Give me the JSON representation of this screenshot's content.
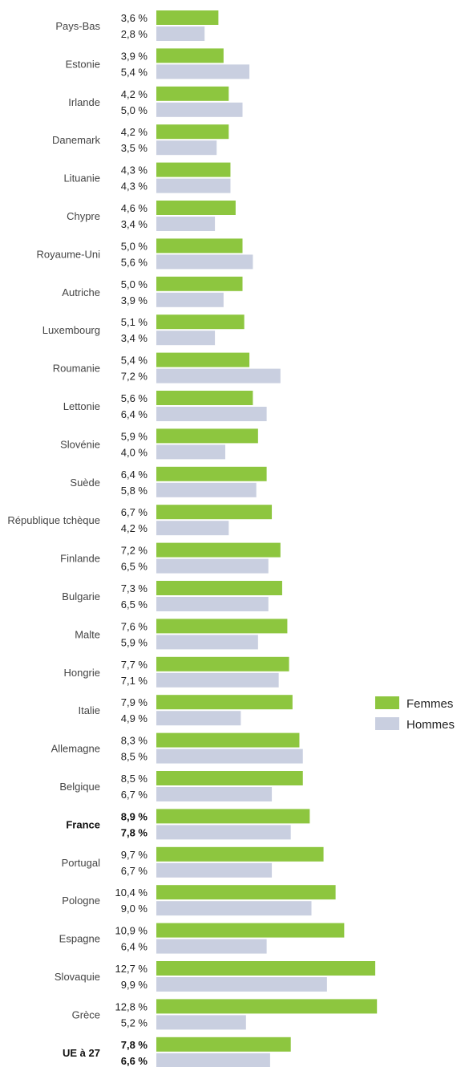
{
  "chart_data": {
    "type": "bar",
    "orientation": "horizontal",
    "value_suffix": " %",
    "colors": {
      "Femmes": "#8dc63f",
      "Hommes": "#c9cfe0"
    },
    "categories": [
      "Pays-Bas",
      "Estonie",
      "Irlande",
      "Danemark",
      "Lituanie",
      "Chypre",
      "Royaume-Uni",
      "Autriche",
      "Luxembourg",
      "Roumanie",
      "Lettonie",
      "Slovénie",
      "Suède",
      "République tchèque",
      "Finlande",
      "Bulgarie",
      "Malte",
      "Hongrie",
      "Italie",
      "Allemagne",
      "Belgique",
      "France",
      "Portugal",
      "Pologne",
      "Espagne",
      "Slovaquie",
      "Grèce",
      "UE à 27"
    ],
    "highlighted_categories": [
      "France",
      "UE à 27"
    ],
    "series": [
      {
        "name": "Femmes",
        "values": [
          3.6,
          3.9,
          4.2,
          4.2,
          4.3,
          4.6,
          5.0,
          5.0,
          5.1,
          5.4,
          5.6,
          5.9,
          6.4,
          6.7,
          7.2,
          7.3,
          7.6,
          7.7,
          7.9,
          8.3,
          8.5,
          8.9,
          9.7,
          10.4,
          10.9,
          12.7,
          12.8,
          7.8
        ],
        "labels": [
          "3,6 %",
          "3,9 %",
          "4,2 %",
          "4,2 %",
          "4,3 %",
          "4,6 %",
          "5,0 %",
          "5,0 %",
          "5,1 %",
          "5,4 %",
          "5,6 %",
          "5,9 %",
          "6,4 %",
          "6,7 %",
          "7,2 %",
          "7,3 %",
          "7,6 %",
          "7,7 %",
          "7,9 %",
          "8,3 %",
          "8,5 %",
          "8,9 %",
          "9,7 %",
          "10,4 %",
          "10,9 %",
          "12,7 %",
          "12,8 %",
          "7,8 %"
        ]
      },
      {
        "name": "Hommes",
        "values": [
          2.8,
          5.4,
          5.0,
          3.5,
          4.3,
          3.4,
          5.6,
          3.9,
          3.4,
          7.2,
          6.4,
          4.0,
          5.8,
          4.2,
          6.5,
          6.5,
          5.9,
          7.1,
          4.9,
          8.5,
          6.7,
          7.8,
          6.7,
          9.0,
          6.4,
          9.9,
          5.2,
          6.6
        ],
        "labels": [
          "2,8 %",
          "5,4 %",
          "5,0 %",
          "3,5 %",
          "4,3 %",
          "3,4 %",
          "5,6 %",
          "3,9 %",
          "3,4 %",
          "7,2 %",
          "6,4 %",
          "4,0 %",
          "5,8 %",
          "4,2 %",
          "6,5 %",
          "6,5 %",
          "5,9 %",
          "7,1 %",
          "4,9 %",
          "8,5 %",
          "6,7 %",
          "7,8 %",
          "6,7 %",
          "9,0 %",
          "6,4 %",
          "9,9 %",
          "5,2 %",
          "6,6 %"
        ]
      }
    ],
    "legend": {
      "position": "right",
      "entries": [
        "Femmes",
        "Hommes"
      ]
    }
  }
}
